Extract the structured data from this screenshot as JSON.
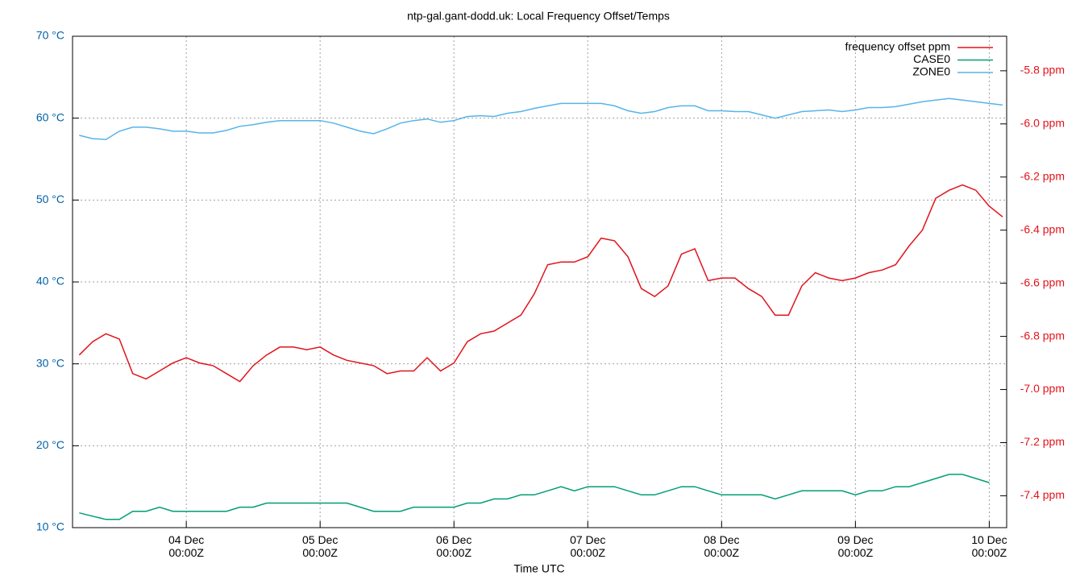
{
  "chart_data": {
    "type": "line",
    "title": "ntp-gal.gant-dodd.uk: Local Frequency Offset/Temps",
    "xlabel": "Time UTC",
    "grid": true,
    "legend": "top-right",
    "tick_color": "#0060a8",
    "y2tick_color": "#e0141c",
    "xlim": [
      3.15,
      10.13
    ],
    "xticks": [
      {
        "value": 4,
        "label": "04 Dec 00:00Z"
      },
      {
        "value": 5,
        "label": "05 Dec 00:00Z"
      },
      {
        "value": 6,
        "label": "06 Dec 00:00Z"
      },
      {
        "value": 7,
        "label": "07 Dec 00:00Z"
      },
      {
        "value": 8,
        "label": "08 Dec 00:00Z"
      },
      {
        "value": 9,
        "label": "09 Dec 00:00Z"
      },
      {
        "value": 10,
        "label": "10 Dec 00:00Z"
      }
    ],
    "ylim": [
      10,
      70
    ],
    "yticks": [
      {
        "value": 10,
        "label": "10 °C"
      },
      {
        "value": 20,
        "label": "20 °C"
      },
      {
        "value": 30,
        "label": "30 °C"
      },
      {
        "value": 40,
        "label": "40 °C"
      },
      {
        "value": 50,
        "label": "50 °C"
      },
      {
        "value": 60,
        "label": "60 °C"
      },
      {
        "value": 70,
        "label": "70 °C"
      }
    ],
    "y2lim": [
      -7.52,
      -5.67
    ],
    "y2ticks": [
      {
        "value": -7.4,
        "label": "-7.4 ppm"
      },
      {
        "value": -7.2,
        "label": "-7.2 ppm"
      },
      {
        "value": -7.0,
        "label": "-7.0 ppm"
      },
      {
        "value": -6.8,
        "label": "-6.8 ppm"
      },
      {
        "value": -6.6,
        "label": "-6.6 ppm"
      },
      {
        "value": -6.4,
        "label": "-6.4 ppm"
      },
      {
        "value": -6.2,
        "label": "-6.2 ppm"
      },
      {
        "value": -6.0,
        "label": "-6.0 ppm"
      },
      {
        "value": -5.8,
        "label": "-5.8 ppm"
      }
    ],
    "x": [
      3.2,
      3.3,
      3.4,
      3.5,
      3.6,
      3.7,
      3.8,
      3.9,
      4.0,
      4.1,
      4.2,
      4.3,
      4.4,
      4.5,
      4.6,
      4.7,
      4.8,
      4.9,
      5.0,
      5.1,
      5.2,
      5.3,
      5.4,
      5.5,
      5.6,
      5.7,
      5.8,
      5.9,
      6.0,
      6.1,
      6.2,
      6.3,
      6.4,
      6.5,
      6.6,
      6.7,
      6.8,
      6.9,
      7.0,
      7.1,
      7.2,
      7.3,
      7.4,
      7.5,
      7.6,
      7.7,
      7.8,
      7.9,
      8.0,
      8.1,
      8.2,
      8.3,
      8.4,
      8.5,
      8.6,
      8.7,
      8.8,
      8.9,
      9.0,
      9.1,
      9.2,
      9.3,
      9.4,
      9.5,
      9.6,
      9.7,
      9.8,
      9.9,
      10.0,
      10.1
    ],
    "series": [
      {
        "name": "frequency offset ppm",
        "color": "#e0141c",
        "axis": "y2",
        "values": [
          -6.87,
          -6.82,
          -6.79,
          -6.81,
          -6.94,
          -6.96,
          -6.93,
          -6.9,
          -6.88,
          -6.9,
          -6.91,
          -6.94,
          -6.97,
          -6.91,
          -6.87,
          -6.84,
          -6.84,
          -6.85,
          -6.84,
          -6.87,
          -6.89,
          -6.9,
          -6.91,
          -6.94,
          -6.93,
          -6.93,
          -6.88,
          -6.93,
          -6.9,
          -6.82,
          -6.79,
          -6.78,
          -6.75,
          -6.72,
          -6.64,
          -6.53,
          -6.52,
          -6.52,
          -6.5,
          -6.43,
          -6.44,
          -6.5,
          -6.62,
          -6.65,
          -6.61,
          -6.49,
          -6.47,
          -6.59,
          -6.58,
          -6.58,
          -6.62,
          -6.65,
          -6.72,
          -6.72,
          -6.61,
          -6.56,
          -6.58,
          -6.59,
          -6.58,
          -6.56,
          -6.55,
          -6.53,
          -6.46,
          -6.4,
          -6.28,
          -6.25,
          -6.23,
          -6.25,
          -6.31,
          -6.35
        ]
      },
      {
        "name": "CASE0",
        "color": "#009e73",
        "values": [
          11.8,
          11.4,
          11.0,
          11.0,
          12.0,
          12.0,
          12.5,
          12.0,
          12.0,
          12.0,
          12.0,
          12.0,
          12.5,
          12.5,
          13.0,
          13.0,
          13.0,
          13.0,
          13.0,
          13.0,
          13.0,
          12.5,
          12.0,
          12.0,
          12.0,
          12.5,
          12.5,
          12.5,
          12.5,
          13.0,
          13.0,
          13.5,
          13.5,
          14.0,
          14.0,
          14.5,
          15.0,
          14.5,
          15.0,
          15.0,
          15.0,
          14.5,
          14.0,
          14.0,
          14.5,
          15.0,
          15.0,
          14.5,
          14.0,
          14.0,
          14.0,
          14.0,
          13.5,
          14.0,
          14.5,
          14.5,
          14.5,
          14.5,
          14.0,
          14.5,
          14.5,
          15.0,
          15.0,
          15.5,
          16.0,
          16.5,
          16.5,
          16.0,
          15.5,
          null
        ]
      },
      {
        "name": "ZONE0",
        "color": "#56b4e9",
        "values": [
          57.9,
          57.5,
          57.4,
          58.4,
          58.9,
          58.9,
          58.7,
          58.4,
          58.4,
          58.2,
          58.2,
          58.5,
          59.0,
          59.2,
          59.5,
          59.7,
          59.7,
          59.7,
          59.7,
          59.4,
          58.9,
          58.4,
          58.1,
          58.7,
          59.4,
          59.7,
          59.9,
          59.5,
          59.7,
          60.2,
          60.3,
          60.2,
          60.6,
          60.8,
          61.2,
          61.5,
          61.8,
          61.8,
          61.8,
          61.8,
          61.5,
          60.9,
          60.6,
          60.8,
          61.3,
          61.5,
          61.5,
          60.9,
          60.9,
          60.8,
          60.8,
          60.4,
          60.0,
          60.4,
          60.8,
          60.9,
          61.0,
          60.8,
          61.0,
          61.3,
          61.3,
          61.4,
          61.7,
          62.0,
          62.2,
          62.4,
          62.2,
          62.0,
          61.8,
          61.6
        ]
      }
    ]
  }
}
